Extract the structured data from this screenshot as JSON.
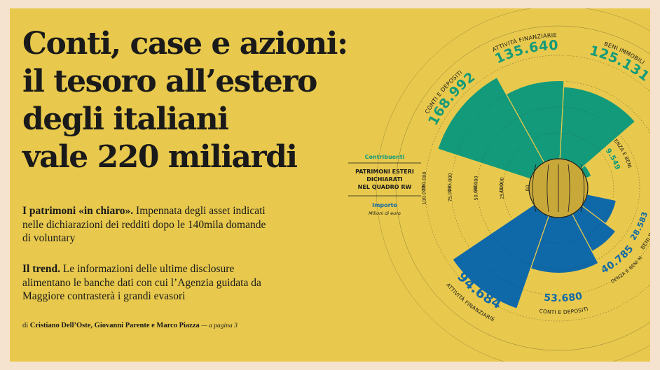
{
  "headline": {
    "lines": [
      "Conti, case e azioni:",
      "il tesoro all’estero",
      "degli italiani",
      "vale 220 miliardi"
    ]
  },
  "paragraph1": {
    "lead": "I patrimoni «in chiaro».",
    "text": "Impennata degli asset indicati nelle dichiarazioni dei redditi dopo le 140mila domande di voluntary"
  },
  "paragraph2": {
    "lead": "Il trend.",
    "text": "Le informazioni delle ultime disclosure alimentano le banche dati con cui l’Agenzia guidata da Maggiore contrasterà i grandi evasori"
  },
  "byline": {
    "prefix": "di",
    "authors": "Cristiano Dell’Oste, Giovanni Parente e Marco Piazza",
    "page_ref": "— a pagina 3"
  },
  "colors": {
    "background": "#e8c94d",
    "contribuenti": "#139a7a",
    "importo": "#0f68a8",
    "ring": "#c9a83a",
    "text": "#1a1a1a"
  },
  "chart_data": {
    "type": "polar-bar",
    "title": "PATRIMONI ESTERI DICHIARATI NEL QUADRO RW",
    "units": "Milioni di euro",
    "series": [
      {
        "name": "Contribuenti",
        "categories": [
          "CONTI E DEPOSITI",
          "ATTIVITÀ FINANZIARIE",
          "BENI IMMOBILI",
          "PREVIDENZA E BENI MOBILI"
        ],
        "values": [
          168992,
          135640,
          125131,
          9549
        ],
        "value_labels": [
          "168.992",
          "135.640",
          "125.131",
          "9.549"
        ],
        "axis_ticks": [
          "0",
          "45.000",
          "90.000",
          "135.000",
          "180.000"
        ],
        "axis_max": 180000
      },
      {
        "name": "Importo",
        "categories": [
          "ATTIVITÀ FINANZIARIE",
          "CONTI E DEPOSITI",
          "PREVIDENZA E BENI MOBILI",
          "BENI IMMOBILI"
        ],
        "values": [
          94684,
          53680,
          40785,
          28583
        ],
        "value_labels": [
          "94.684",
          "53.680",
          "40.785",
          "28.583"
        ],
        "axis_ticks": [
          "0",
          "25.000",
          "50.000",
          "75.000",
          "100.000"
        ],
        "axis_max": 100000
      }
    ],
    "legend": {
      "contribuenti": "Contribuenti",
      "title": "PATRIMONI ESTERI DICHIARATI NEL QUADRO RW",
      "importo": "Importo",
      "importo_units": "Milioni di euro"
    }
  }
}
